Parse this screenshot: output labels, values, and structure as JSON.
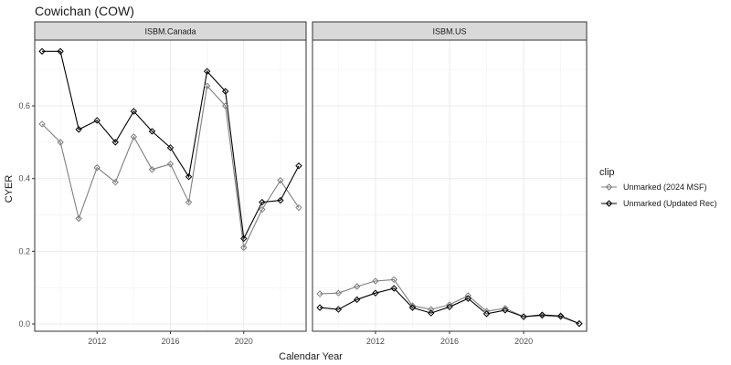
{
  "chart_data": {
    "type": "line",
    "title": "Cowichan (COW)",
    "xlabel": "Calendar Year",
    "ylabel": "CYER",
    "legend_title": "clip",
    "legend_position": "right",
    "grid": true,
    "xlim": [
      2008.6,
      2023.4
    ],
    "ylim": [
      -0.02,
      0.7808
    ],
    "x_ticks": [
      2012,
      2016,
      2020
    ],
    "y_ticks": [
      0.0,
      0.2,
      0.4,
      0.6
    ],
    "x_tick_labels": [
      "2012",
      "2016",
      "2020"
    ],
    "y_tick_labels": [
      "0.0",
      "0.2",
      "0.4",
      "0.6"
    ],
    "series_styles": [
      {
        "name": "Unmarked (2024 MSF)",
        "color": "#7f7f7f"
      },
      {
        "name": "Unmarked (Updated Rec)",
        "color": "#000000"
      }
    ],
    "panels": [
      {
        "strip": "ISBM.Canada",
        "series": [
          {
            "name": "Unmarked (2024 MSF)",
            "x": [
              2009,
              2010,
              2011,
              2012,
              2013,
              2014,
              2015,
              2016,
              2017,
              2018,
              2019,
              2020,
              2021,
              2022,
              2023
            ],
            "y": [
              0.55,
              0.5,
              0.29,
              0.43,
              0.39,
              0.515,
              0.425,
              0.44,
              0.335,
              0.655,
              0.6,
              0.21,
              0.315,
              0.395,
              0.32
            ]
          },
          {
            "name": "Unmarked (Updated Rec)",
            "x": [
              2009,
              2010,
              2011,
              2012,
              2013,
              2014,
              2015,
              2016,
              2017,
              2018,
              2019,
              2020,
              2021,
              2022,
              2023
            ],
            "y": [
              0.75,
              0.75,
              0.535,
              0.56,
              0.5,
              0.585,
              0.53,
              0.485,
              0.405,
              0.695,
              0.64,
              0.235,
              0.335,
              0.34,
              0.435
            ]
          }
        ]
      },
      {
        "strip": "ISBM.US",
        "series": [
          {
            "name": "Unmarked (2024 MSF)",
            "x": [
              2009,
              2010,
              2011,
              2012,
              2013,
              2014,
              2015,
              2016,
              2017,
              2018,
              2019,
              2020,
              2021,
              2022,
              2023
            ],
            "y": [
              0.083,
              0.085,
              0.103,
              0.118,
              0.122,
              0.05,
              0.04,
              0.053,
              0.078,
              0.035,
              0.043,
              0.02,
              0.023,
              0.02,
              0.001
            ]
          },
          {
            "name": "Unmarked (Updated Rec)",
            "x": [
              2009,
              2010,
              2011,
              2012,
              2013,
              2014,
              2015,
              2016,
              2017,
              2018,
              2019,
              2020,
              2021,
              2022,
              2023
            ],
            "y": [
              0.045,
              0.04,
              0.067,
              0.085,
              0.098,
              0.045,
              0.03,
              0.047,
              0.07,
              0.028,
              0.038,
              0.02,
              0.025,
              0.022,
              0.001
            ]
          }
        ]
      }
    ]
  }
}
